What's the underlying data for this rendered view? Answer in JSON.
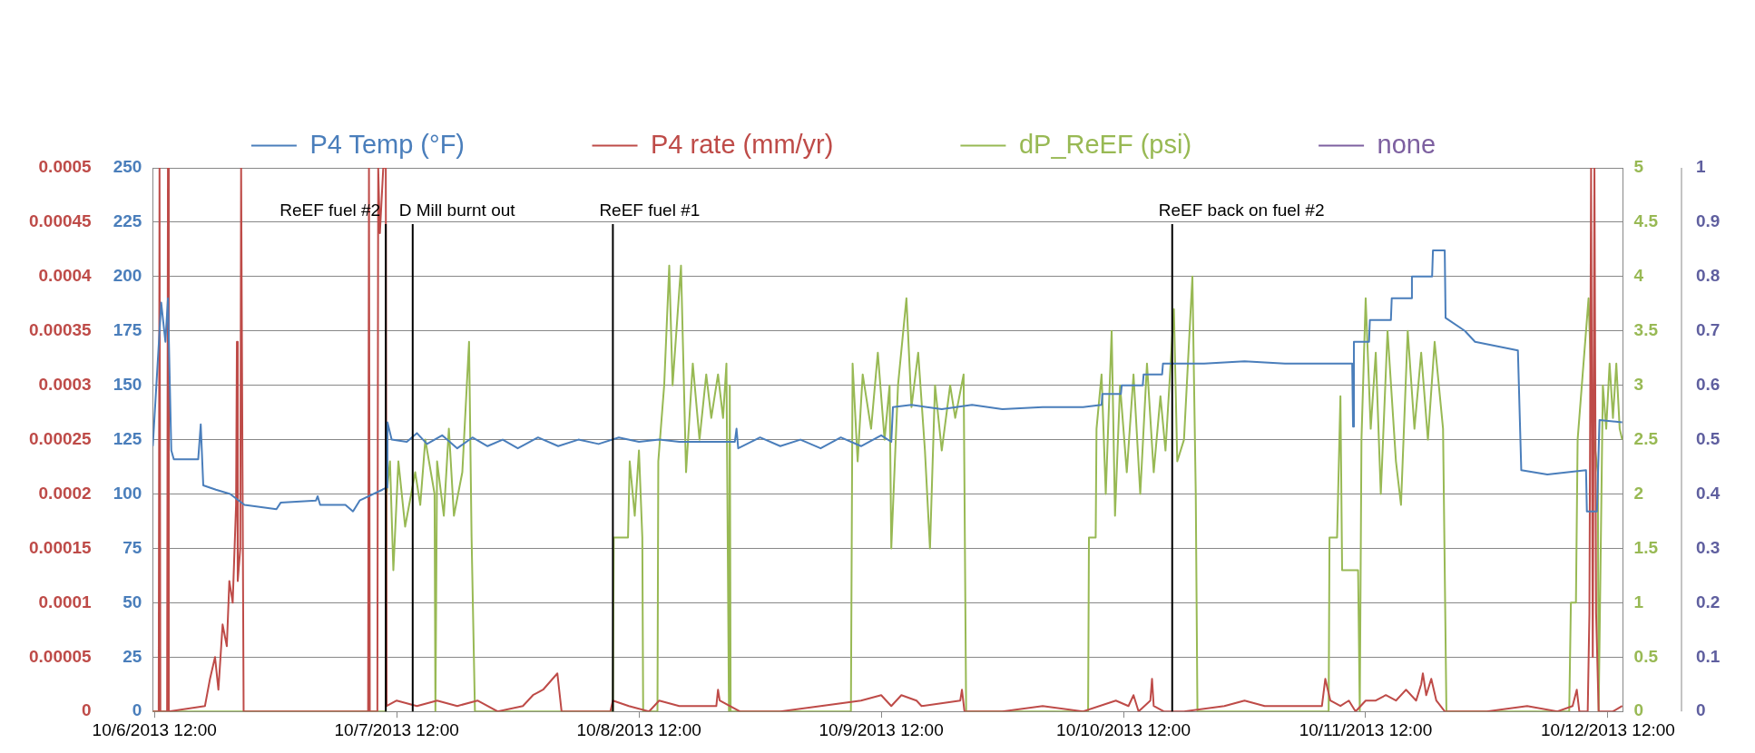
{
  "chart_data": {
    "type": "line",
    "legend": "top",
    "grid": "y",
    "marker": "none",
    "xlim": [
      "2013-10-06T11:50",
      "2013-10-12T13:30"
    ],
    "xticks": [
      {
        "value": "2013-10-06T12:00",
        "label": "10/6/2013 12:00"
      },
      {
        "value": "2013-10-07T12:00",
        "label": "10/7/2013 12:00"
      },
      {
        "value": "2013-10-08T12:00",
        "label": "10/8/2013 12:00"
      },
      {
        "value": "2013-10-09T12:00",
        "label": "10/9/2013 12:00"
      },
      {
        "value": "2013-10-10T12:00",
        "label": "10/10/2013 12:00"
      },
      {
        "value": "2013-10-11T12:00",
        "label": "10/11/2013 12:00"
      },
      {
        "value": "2013-10-12T12:00",
        "label": "10/12/2013 12:00"
      }
    ],
    "ylim": [
      0,
      250
    ],
    "yticks": [
      0,
      25,
      50,
      75,
      100,
      125,
      150,
      175,
      200,
      225,
      250
    ],
    "y2lim": [
      0,
      0.0005
    ],
    "y2ticks": [
      0,
      {
        "value": 5e-05,
        "label": "0.00005"
      },
      0.0001,
      0.00015,
      0.0002,
      0.00025,
      0.0003,
      0.00035,
      0.0004,
      0.00045,
      0.0005
    ],
    "y3lim": [
      0,
      5
    ],
    "y3ticks": [
      0,
      0.5,
      1,
      1.5,
      2,
      2.5,
      3,
      3.5,
      4,
      4.5,
      5
    ],
    "annotations": [
      "0",
      "0.1",
      "0.2",
      "0.3",
      "0.4",
      "0.5",
      "0.6",
      "0.7",
      "0.8",
      "0.9",
      "1"
    ],
    "series": [
      {
        "name": "P4 Temp (°F)",
        "color": "#4a7ebb",
        "axis": "y",
        "x": [
          "2013-10-06T11:50",
          "2013-10-06T12:40",
          "2013-10-06T13:05",
          "2013-10-06T13:20",
          "2013-10-06T13:40",
          "2013-10-06T13:55",
          "2013-10-06T16:20",
          "2013-10-06T16:35",
          "2013-10-06T16:50",
          "2013-10-06T18:05",
          "2013-10-06T19:30",
          "2013-10-06T20:55",
          "2013-10-07T00:05",
          "2013-10-07T00:30",
          "2013-10-07T04:00",
          "2013-10-07T04:10",
          "2013-10-07T04:25",
          "2013-10-07T06:55",
          "2013-10-07T07:40",
          "2013-10-07T08:20",
          "2013-10-07T10:35",
          "2013-10-07T11:00",
          "2013-10-07T11:05",
          "2013-10-07T11:30",
          "2013-10-07T13:00",
          "2013-10-07T14:00",
          "2013-10-07T15:00",
          "2013-10-07T16:30",
          "2013-10-07T18:00",
          "2013-10-07T19:30",
          "2013-10-07T21:00",
          "2013-10-07T22:30",
          "2013-10-08T00:00",
          "2013-10-08T02:00",
          "2013-10-08T04:00",
          "2013-10-08T06:00",
          "2013-10-08T08:00",
          "2013-10-08T10:00",
          "2013-10-08T12:00",
          "2013-10-08T14:00",
          "2013-10-08T16:00",
          "2013-10-08T21:30",
          "2013-10-08T21:40",
          "2013-10-08T21:50",
          "2013-10-09T00:00",
          "2013-10-09T02:00",
          "2013-10-09T04:00",
          "2013-10-09T06:00",
          "2013-10-09T08:00",
          "2013-10-09T10:00",
          "2013-10-09T12:00",
          "2013-10-09T13:00",
          "2013-10-09T13:10",
          "2013-10-09T15:00",
          "2013-10-09T18:00",
          "2013-10-09T21:00",
          "2013-10-10T00:00",
          "2013-10-10T04:00",
          "2013-10-10T08:00",
          "2013-10-10T09:50",
          "2013-10-10T09:55",
          "2013-10-10T11:45",
          "2013-10-10T11:50",
          "2013-10-10T13:55",
          "2013-10-10T14:00",
          "2013-10-10T15:50",
          "2013-10-10T15:55",
          "2013-10-10T20:00",
          "2013-10-11T00:00",
          "2013-10-11T04:00",
          "2013-10-11T08:00",
          "2013-10-11T10:40",
          "2013-10-11T10:45",
          "2013-10-11T10:50",
          "2013-10-11T12:20",
          "2013-10-11T12:25",
          "2013-10-11T14:30",
          "2013-10-11T14:35",
          "2013-10-11T16:30",
          "2013-10-11T16:35",
          "2013-10-11T18:35",
          "2013-10-11T18:40",
          "2013-10-11T19:50",
          "2013-10-11T19:55",
          "2013-10-11T21:50",
          "2013-10-11T22:50",
          "2013-10-12T03:05",
          "2013-10-12T03:25",
          "2013-10-12T06:00",
          "2013-10-12T09:50",
          "2013-10-12T09:55",
          "2013-10-12T10:55",
          "2013-10-12T11:10",
          "2013-10-12T13:25"
        ],
        "values": [
          122,
          188,
          170,
          190,
          120,
          116,
          116,
          132,
          104,
          102,
          100,
          95,
          93,
          96,
          97,
          99,
          95,
          95,
          92,
          97,
          102,
          103,
          133,
          125,
          124,
          128,
          123,
          127,
          121,
          126,
          122,
          125,
          121,
          126,
          122,
          125,
          123,
          126,
          124,
          125,
          124,
          124,
          130,
          121,
          126,
          122,
          125,
          121,
          126,
          122,
          127,
          124,
          140,
          141,
          139,
          141,
          139,
          140,
          140,
          141,
          146,
          146,
          150,
          150,
          155,
          155,
          160,
          160,
          161,
          160,
          160,
          160,
          131,
          170,
          170,
          180,
          180,
          190,
          190,
          200,
          200,
          212,
          212,
          181,
          175,
          170,
          166,
          111,
          109,
          111,
          92,
          92,
          134,
          133
        ]
      },
      {
        "name": "P4 rate (mm/yr)",
        "color": "#be4b48",
        "axis": "y2",
        "x": [
          "2013-10-06T11:50",
          "2013-10-06T12:25",
          "2013-10-06T12:30",
          "2013-10-06T12:35",
          "2013-10-06T13:15",
          "2013-10-06T13:20",
          "2013-10-06T13:25",
          "2013-10-06T17:00",
          "2013-10-06T17:30",
          "2013-10-06T18:00",
          "2013-10-06T18:20",
          "2013-10-06T18:45",
          "2013-10-06T19:10",
          "2013-10-06T19:25",
          "2013-10-06T19:45",
          "2013-10-06T20:05",
          "2013-10-06T20:10",
          "2013-10-06T20:15",
          "2013-10-06T20:30",
          "2013-10-06T20:35",
          "2013-10-06T20:50",
          "2013-10-07T09:10",
          "2013-10-07T09:15",
          "2013-10-07T09:20",
          "2013-10-07T10:05",
          "2013-10-07T10:10",
          "2013-10-07T10:20",
          "2013-10-07T10:40",
          "2013-10-07T10:55",
          "2013-10-07T11:00",
          "2013-10-07T12:00",
          "2013-10-07T14:00",
          "2013-10-07T16:00",
          "2013-10-07T18:00",
          "2013-10-07T20:00",
          "2013-10-07T22:00",
          "2013-10-08T00:30",
          "2013-10-08T01:30",
          "2013-10-08T02:30",
          "2013-10-08T03:55",
          "2013-10-08T04:20",
          "2013-10-08T06:00",
          "2013-10-08T09:10",
          "2013-10-08T09:25",
          "2013-10-08T11:00",
          "2013-10-08T13:00",
          "2013-10-08T14:00",
          "2013-10-08T16:00",
          "2013-10-08T19:40",
          "2013-10-08T19:50",
          "2013-10-08T20:00",
          "2013-10-08T22:00",
          "2013-10-09T02:00",
          "2013-10-09T06:00",
          "2013-10-09T10:00",
          "2013-10-09T12:00",
          "2013-10-09T13:00",
          "2013-10-09T14:00",
          "2013-10-09T15:30",
          "2013-10-09T16:00",
          "2013-10-09T19:50",
          "2013-10-09T20:00",
          "2013-10-09T20:15",
          "2013-10-10T00:00",
          "2013-10-10T04:00",
          "2013-10-10T08:00",
          "2013-10-10T11:15",
          "2013-10-10T12:30",
          "2013-10-10T13:00",
          "2013-10-10T13:30",
          "2013-10-10T14:40",
          "2013-10-10T14:50",
          "2013-10-10T15:00",
          "2013-10-10T16:00",
          "2013-10-10T18:00",
          "2013-10-10T22:00",
          "2013-10-11T00:00",
          "2013-10-11T02:00",
          "2013-10-11T04:00",
          "2013-10-11T06:00",
          "2013-10-11T07:40",
          "2013-10-11T08:00",
          "2013-10-11T08:30",
          "2013-10-11T09:30",
          "2013-10-11T10:20",
          "2013-10-11T11:00",
          "2013-10-11T12:00",
          "2013-10-11T13:00",
          "2013-10-11T14:00",
          "2013-10-11T15:00",
          "2013-10-11T16:00",
          "2013-10-11T17:00",
          "2013-10-11T17:30",
          "2013-10-11T17:40",
          "2013-10-11T18:00",
          "2013-10-11T18:30",
          "2013-10-11T19:00",
          "2013-10-11T19:50",
          "2013-10-12T00:00",
          "2013-10-12T04:00",
          "2013-10-12T07:00",
          "2013-10-12T08:30",
          "2013-10-12T08:55",
          "2013-10-12T09:10",
          "2013-10-12T10:00",
          "2013-10-12T10:10",
          "2013-10-12T10:20",
          "2013-10-12T10:30",
          "2013-10-12T10:40",
          "2013-10-12T10:50",
          "2013-10-12T11:05",
          "2013-10-12T12:30",
          "2013-10-12T13:25"
        ],
        "values": [
          0,
          0,
          0.0005,
          0,
          0,
          0.0005,
          0,
          5e-06,
          3e-05,
          5e-05,
          2e-05,
          8e-05,
          6e-05,
          0.00012,
          0.0001,
          0.00019,
          0.00034,
          0.00012,
          0.00015,
          0.0005,
          0,
          0,
          0.0005,
          0,
          0,
          0.0005,
          0.00044,
          0.0005,
          0.0005,
          5e-06,
          1e-05,
          5e-06,
          1e-05,
          5e-06,
          1e-05,
          0,
          5e-06,
          1.5e-05,
          2e-05,
          3.5e-05,
          0,
          0,
          0,
          1e-05,
          5e-06,
          0,
          1e-05,
          5e-06,
          5e-06,
          2e-05,
          1e-05,
          0,
          0,
          5e-06,
          1e-05,
          1.5e-05,
          5e-06,
          1.5e-05,
          1e-05,
          5e-06,
          1e-05,
          2e-05,
          0,
          0,
          5e-06,
          0,
          1e-05,
          5e-06,
          1.5e-05,
          0,
          1e-05,
          3e-05,
          5e-06,
          0,
          0,
          5e-06,
          1e-05,
          5e-06,
          5e-06,
          5e-06,
          5e-06,
          3e-05,
          1e-05,
          5e-06,
          1e-05,
          0,
          1e-05,
          1e-05,
          1.5e-05,
          1e-05,
          2e-05,
          1e-05,
          2.5e-05,
          3.5e-05,
          1.5e-05,
          3e-05,
          1e-05,
          0,
          0,
          5e-06,
          0,
          5e-06,
          2e-05,
          0,
          0,
          9e-05,
          0.0005,
          5e-05,
          0.0005,
          9e-05,
          0,
          0,
          5e-06
        ]
      },
      {
        "name": "dP_ReEF (psi)",
        "color": "#98b954",
        "axis": "y3",
        "x": [
          "2013-10-06T11:50",
          "2013-10-07T10:55",
          "2013-10-07T11:00",
          "2013-10-07T11:20",
          "2013-10-07T11:40",
          "2013-10-07T12:10",
          "2013-10-07T12:50",
          "2013-10-07T13:50",
          "2013-10-07T14:20",
          "2013-10-07T14:50",
          "2013-10-07T15:45",
          "2013-10-07T15:50",
          "2013-10-07T16:00",
          "2013-10-07T16:40",
          "2013-10-07T17:10",
          "2013-10-07T17:40",
          "2013-10-07T18:30",
          "2013-10-07T19:10",
          "2013-10-07T19:25",
          "2013-10-07T19:45",
          "2013-10-08T09:25",
          "2013-10-08T09:30",
          "2013-10-08T10:55",
          "2013-10-08T11:05",
          "2013-10-08T11:35",
          "2013-10-08T12:00",
          "2013-10-08T12:20",
          "2013-10-08T12:25",
          "2013-10-08T13:50",
          "2013-10-08T13:55",
          "2013-10-08T14:30",
          "2013-10-08T15:00",
          "2013-10-08T15:20",
          "2013-10-08T16:10",
          "2013-10-08T16:40",
          "2013-10-08T17:20",
          "2013-10-08T18:00",
          "2013-10-08T18:40",
          "2013-10-08T19:10",
          "2013-10-08T19:50",
          "2013-10-08T20:20",
          "2013-10-08T20:40",
          "2013-10-08T20:55",
          "2013-10-08T21:00",
          "2013-10-08T21:05",
          "2013-10-09T09:00",
          "2013-10-09T09:10",
          "2013-10-09T09:40",
          "2013-10-09T10:10",
          "2013-10-09T11:00",
          "2013-10-09T11:40",
          "2013-10-09T12:20",
          "2013-10-09T12:50",
          "2013-10-09T13:00",
          "2013-10-09T13:40",
          "2013-10-09T14:30",
          "2013-10-09T15:00",
          "2013-10-09T15:40",
          "2013-10-09T16:20",
          "2013-10-09T16:50",
          "2013-10-09T17:20",
          "2013-10-09T18:00",
          "2013-10-09T18:50",
          "2013-10-09T19:20",
          "2013-10-09T20:10",
          "2013-10-09T20:25",
          "2013-10-10T08:30",
          "2013-10-10T08:35",
          "2013-10-10T09:15",
          "2013-10-10T09:20",
          "2013-10-10T09:50",
          "2013-10-10T10:15",
          "2013-10-10T10:50",
          "2013-10-10T11:10",
          "2013-10-10T11:40",
          "2013-10-10T12:20",
          "2013-10-10T13:00",
          "2013-10-10T13:40",
          "2013-10-10T14:20",
          "2013-10-10T15:00",
          "2013-10-10T15:40",
          "2013-10-10T16:10",
          "2013-10-10T17:00",
          "2013-10-10T17:20",
          "2013-10-10T18:00",
          "2013-10-10T18:50",
          "2013-10-10T19:10",
          "2013-10-10T19:20",
          "2013-10-11T08:20",
          "2013-10-11T08:25",
          "2013-10-11T09:10",
          "2013-10-11T09:30",
          "2013-10-11T09:40",
          "2013-10-11T11:15",
          "2013-10-11T11:25",
          "2013-10-11T11:35",
          "2013-10-11T12:00",
          "2013-10-11T12:30",
          "2013-10-11T13:00",
          "2013-10-11T13:30",
          "2013-10-11T14:10",
          "2013-10-11T15:00",
          "2013-10-11T15:30",
          "2013-10-11T16:10",
          "2013-10-11T16:50",
          "2013-10-11T17:30",
          "2013-10-11T18:10",
          "2013-10-11T18:50",
          "2013-10-11T19:40",
          "2013-10-11T20:00",
          "2013-10-12T08:10",
          "2013-10-12T08:20",
          "2013-10-12T08:50",
          "2013-10-12T09:00",
          "2013-10-12T09:30",
          "2013-10-12T10:05",
          "2013-10-12T10:30",
          "2013-10-12T11:00",
          "2013-10-12T11:05",
          "2013-10-12T11:30",
          "2013-10-12T11:50",
          "2013-10-12T12:10",
          "2013-10-12T12:30",
          "2013-10-12T12:50",
          "2013-10-12T13:10",
          "2013-10-12T13:25"
        ],
        "values": [
          0,
          0,
          2.0,
          2.3,
          1.3,
          2.3,
          1.7,
          2.2,
          1.9,
          2.5,
          2.0,
          0,
          2.3,
          1.8,
          2.6,
          1.8,
          2.2,
          3.4,
          1.6,
          0,
          0,
          1.6,
          1.6,
          2.3,
          1.8,
          2.4,
          1.6,
          0,
          0,
          2.3,
          3.0,
          4.1,
          3.0,
          4.1,
          2.2,
          3.2,
          2.5,
          3.1,
          2.7,
          3.1,
          2.7,
          3.2,
          0,
          3.0,
          0,
          0,
          3.2,
          2.3,
          3.1,
          2.6,
          3.3,
          2.5,
          3.0,
          1.5,
          3.0,
          3.8,
          2.8,
          3.3,
          2.4,
          1.5,
          3.0,
          2.4,
          3.0,
          2.7,
          3.1,
          0,
          0,
          1.6,
          1.6,
          2.6,
          3.1,
          2.0,
          3.5,
          1.8,
          3.0,
          2.2,
          3.1,
          2.0,
          3.2,
          2.2,
          2.9,
          2.4,
          3.7,
          2.3,
          2.5,
          4.0,
          2.0,
          0,
          0,
          1.6,
          1.6,
          2.9,
          1.3,
          1.3,
          0,
          2.5,
          3.8,
          2.6,
          3.3,
          2.0,
          3.5,
          2.3,
          1.9,
          3.5,
          2.6,
          3.3,
          2.5,
          3.4,
          2.6,
          0,
          0,
          1.0,
          1.0,
          2.5,
          3.1,
          3.8,
          2.6,
          2.2,
          0,
          3.0,
          2.6,
          3.2,
          2.7,
          3.2,
          2.6,
          2.5
        ]
      },
      {
        "name": "none",
        "color": "#7d60a0"
      }
    ],
    "ref_lines": [
      {
        "axis": "x",
        "value": "2013-10-07T10:55",
        "label": "ReEF fuel #2",
        "color": "#000000"
      },
      {
        "axis": "x",
        "value": "2013-10-07T13:35",
        "label": "D Mill burnt out",
        "color": "#000000"
      },
      {
        "axis": "x",
        "value": "2013-10-08T09:25",
        "label": "ReEF fuel #1",
        "color": "#000000"
      },
      {
        "axis": "x",
        "value": "2013-10-10T16:50",
        "label": "ReEF back on fuel #2",
        "color": "#000000"
      }
    ]
  }
}
